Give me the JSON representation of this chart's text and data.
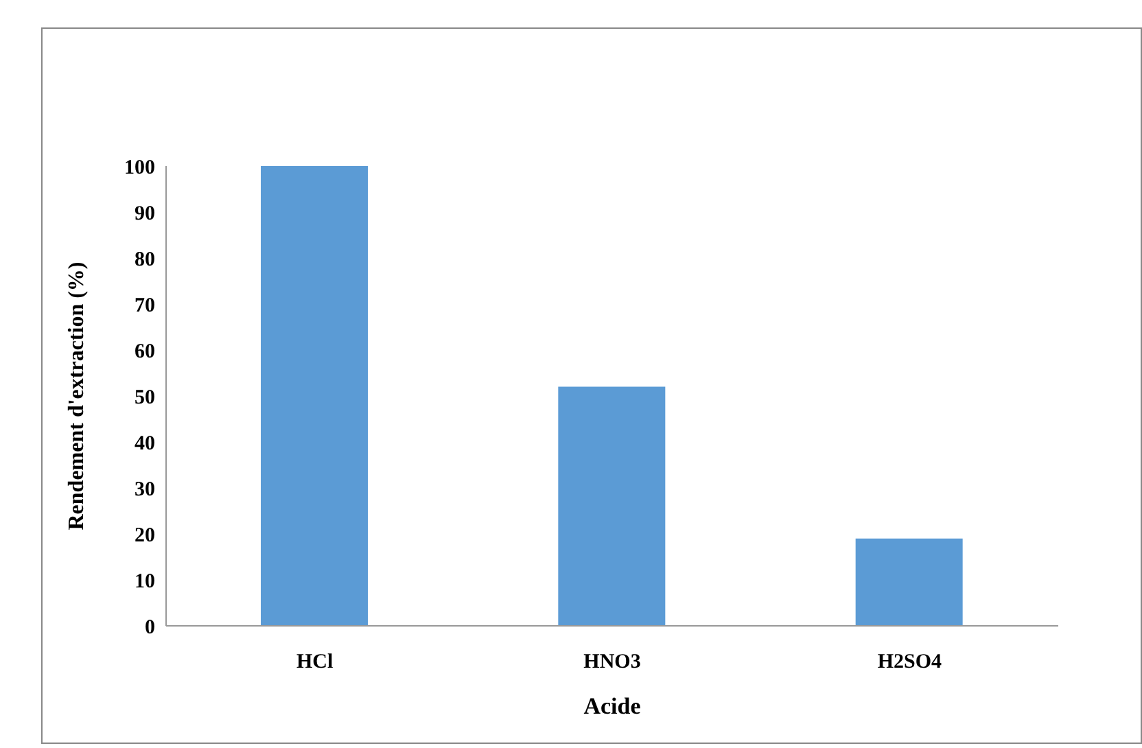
{
  "chart_data": {
    "type": "bar",
    "xlabel": "Acide",
    "ylabel": "Rendement d'extraction (%)",
    "categories": [
      "HCl",
      "HNO3",
      "H2SO4"
    ],
    "values": [
      100,
      52,
      19
    ],
    "color": "#5b9bd5",
    "ylim": [
      0,
      100
    ],
    "yticks": [
      0,
      10,
      20,
      30,
      40,
      50,
      60,
      70,
      80,
      90,
      100
    ],
    "grid": false
  }
}
